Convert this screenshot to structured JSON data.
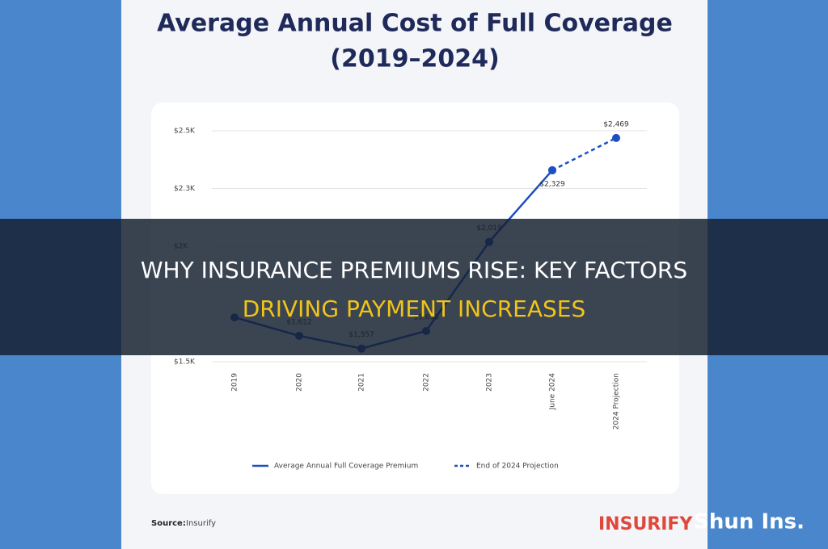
{
  "chart_data": {
    "type": "line",
    "title_lines": [
      "Average Annual Cost of Full Coverage",
      "(2019–2024)"
    ],
    "categories": [
      "2019",
      "2020",
      "2021",
      "2022",
      "2023",
      "June 2024",
      "2024 Projection"
    ],
    "series": [
      {
        "name": "Average Annual Full Coverage Premium",
        "color": "#1d4fc4",
        "dash": false,
        "values": [
          1692,
          1612,
          1557,
          1633,
          2019,
          2329,
          null
        ],
        "value_labels": [
          null,
          "$1,612",
          "$1,557",
          "$1,633",
          "$2,019",
          "$2,329",
          null
        ]
      },
      {
        "name": "End of 2024 Projection",
        "color": "#1d4fc4",
        "dash": true,
        "values": [
          null,
          null,
          null,
          null,
          null,
          2329,
          2469
        ],
        "value_labels": [
          null,
          null,
          null,
          null,
          null,
          null,
          "$2,469"
        ]
      }
    ],
    "ylim": [
      1500,
      2500
    ],
    "yticks": [
      {
        "value": 1500,
        "label": "$1.5K"
      },
      {
        "value": 2000,
        "label": "$2K"
      },
      {
        "value": 2250,
        "label": "$2.3K"
      },
      {
        "value": 2500,
        "label": "$2.5K"
      }
    ],
    "grid": true,
    "source_label": "Source:",
    "source": "Insurify",
    "logo": "INSURIFY"
  },
  "banner": {
    "lines": [
      "WHY INSURANCE PREMIUMS RISE: KEY FACTORS",
      "DRIVING PAYMENT INCREASES"
    ]
  },
  "watermark": "Shun Ins."
}
